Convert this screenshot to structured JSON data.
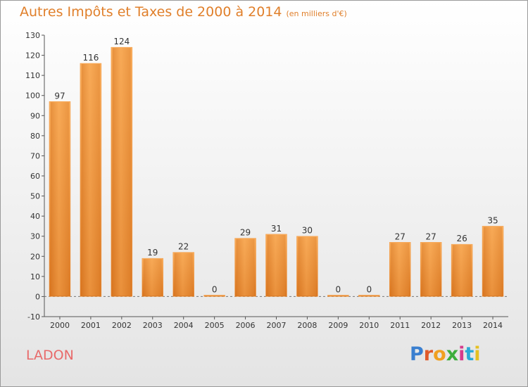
{
  "title": "Autres Impôts et Taxes de 2000 à 2014",
  "title_unit": "(en milliers d'€)",
  "location": "LADON",
  "logo_letters": [
    "P",
    "r",
    "o",
    "x",
    "i",
    "t",
    "i"
  ],
  "chart_data": {
    "type": "bar",
    "categories": [
      "2000",
      "2001",
      "2002",
      "2003",
      "2004",
      "2005",
      "2006",
      "2007",
      "2008",
      "2009",
      "2010",
      "2011",
      "2012",
      "2013",
      "2014"
    ],
    "values": [
      97,
      116,
      124,
      19,
      22,
      0,
      29,
      31,
      30,
      0,
      0,
      27,
      27,
      26,
      35
    ],
    "ylim": [
      -10,
      130
    ],
    "yticks": [
      -10,
      0,
      10,
      20,
      30,
      40,
      50,
      60,
      70,
      80,
      90,
      100,
      110,
      120,
      130
    ],
    "grid": false,
    "bar_color": "#f5a04c"
  }
}
